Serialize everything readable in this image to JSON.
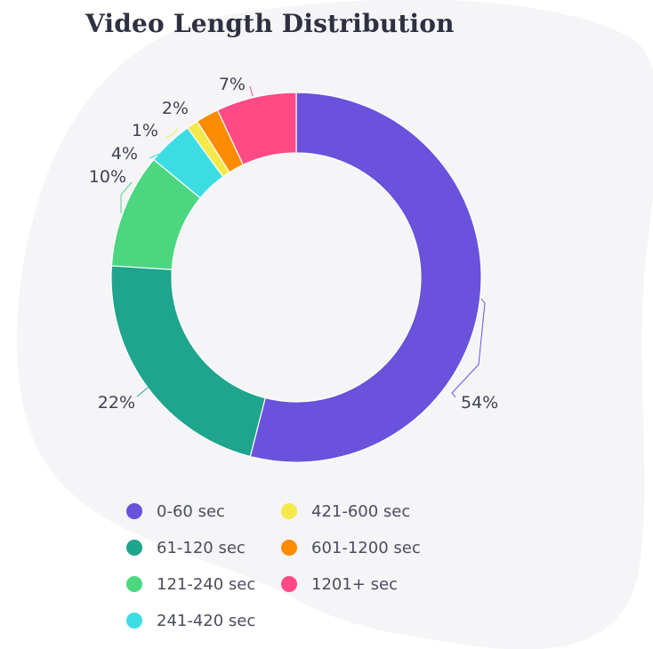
{
  "page": {
    "title": "Video Length Distribution",
    "background_blob_color": "#f5f5f8",
    "text_color": "#3f4154"
  },
  "chart_data": {
    "type": "pie",
    "donut": true,
    "title": "Video Length Distribution",
    "labels": [
      "0-60 sec",
      "61-120 sec",
      "121-240 sec",
      "241-420 sec",
      "421-600 sec",
      "601-1200 sec",
      "1201+ sec"
    ],
    "values": [
      54,
      22,
      10,
      4,
      1,
      2,
      7
    ],
    "value_labels": [
      "54%",
      "22%",
      "10%",
      "4%",
      "1%",
      "2%",
      "7%"
    ],
    "colors": [
      "#6a52dc",
      "#1fa48e",
      "#4cd680",
      "#3cdde2",
      "#f5e84b",
      "#fb8c00",
      "#ff4a86"
    ],
    "legend_placement": "bottom",
    "legend_columns": [
      [
        "0-60 sec",
        "61-120 sec",
        "121-240 sec",
        "241-420 sec"
      ],
      [
        "421-600 sec",
        "601-1200 sec",
        "1201+ sec"
      ]
    ]
  }
}
